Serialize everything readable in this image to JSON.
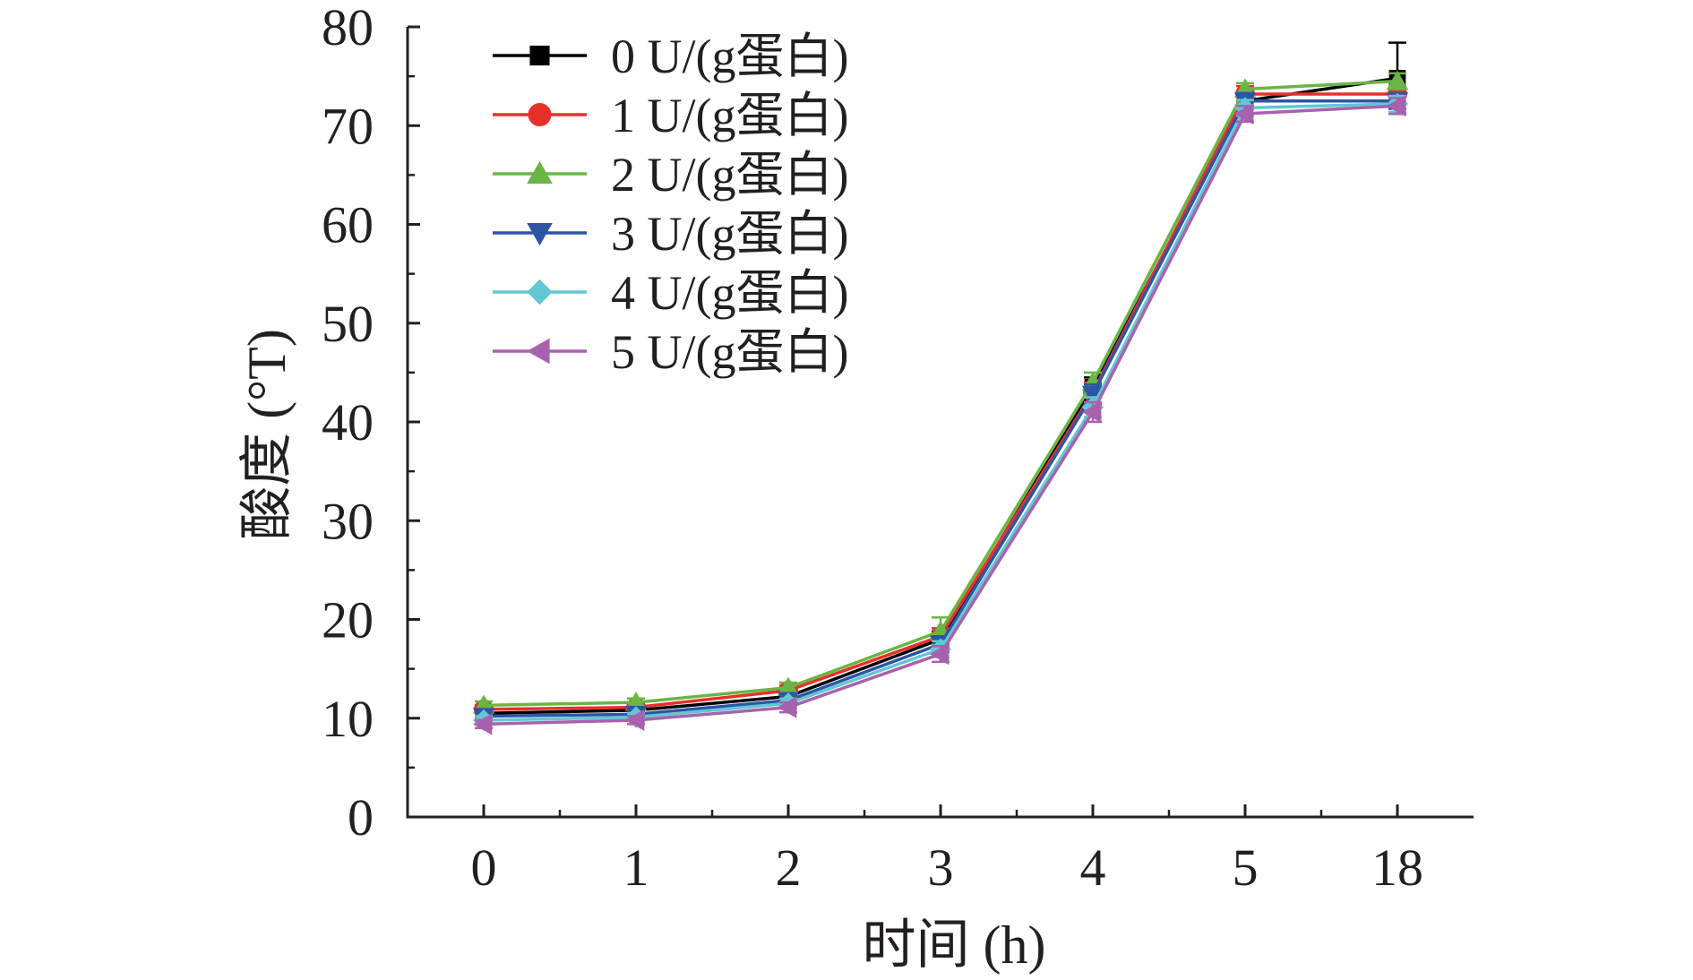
{
  "chart_data": {
    "type": "line",
    "title": "",
    "xlabel": "时间 (h)",
    "ylabel": "酸度 (°T)",
    "categories": [
      "0",
      "1",
      "2",
      "3",
      "4",
      "5",
      "18"
    ],
    "ylim": [
      0,
      80
    ],
    "yticks": [
      "0",
      "10",
      "20",
      "30",
      "40",
      "50",
      "60",
      "70",
      "80"
    ],
    "grid": false,
    "legend_position": "top-left",
    "series": [
      {
        "name": "0 U/(g蛋白)",
        "color": "#000000",
        "marker": "square",
        "values": [
          10.5,
          10.8,
          12.2,
          18.0,
          43.5,
          72.5,
          74.8
        ],
        "errors": [
          0.4,
          0.4,
          0.5,
          0.8,
          1.0,
          0.8,
          3.6
        ]
      },
      {
        "name": "1 U/(g蛋白)",
        "color": "#e8302a",
        "marker": "circle",
        "values": [
          10.9,
          11.1,
          12.8,
          18.3,
          43.0,
          73.2,
          73.2
        ],
        "errors": [
          0.4,
          0.4,
          0.5,
          0.8,
          1.0,
          0.8,
          0.8
        ]
      },
      {
        "name": "2 U/(g蛋白)",
        "color": "#6ab545",
        "marker": "triangle-up",
        "values": [
          11.3,
          11.6,
          13.1,
          18.8,
          44.0,
          73.7,
          74.5
        ],
        "errors": [
          0.4,
          0.4,
          0.5,
          1.4,
          1.0,
          0.6,
          0.8
        ]
      },
      {
        "name": "3 U/(g蛋白)",
        "color": "#2e55a5",
        "marker": "triangle-down",
        "values": [
          10.2,
          10.4,
          11.8,
          17.5,
          42.8,
          72.5,
          72.5
        ],
        "errors": [
          0.4,
          0.4,
          0.5,
          0.8,
          1.0,
          0.8,
          0.8
        ]
      },
      {
        "name": "4 U/(g蛋白)",
        "color": "#62c7d3",
        "marker": "diamond",
        "values": [
          9.8,
          10.1,
          11.5,
          17.0,
          41.5,
          71.8,
          72.2
        ],
        "errors": [
          0.4,
          0.4,
          0.5,
          0.8,
          1.0,
          0.8,
          0.8
        ]
      },
      {
        "name": "5 U/(g蛋白)",
        "color": "#a862ad",
        "marker": "triangle-left",
        "values": [
          9.4,
          9.8,
          11.1,
          16.5,
          41.0,
          71.2,
          72.0
        ],
        "errors": [
          0.4,
          0.4,
          0.5,
          0.8,
          1.0,
          0.8,
          0.8
        ]
      }
    ]
  }
}
